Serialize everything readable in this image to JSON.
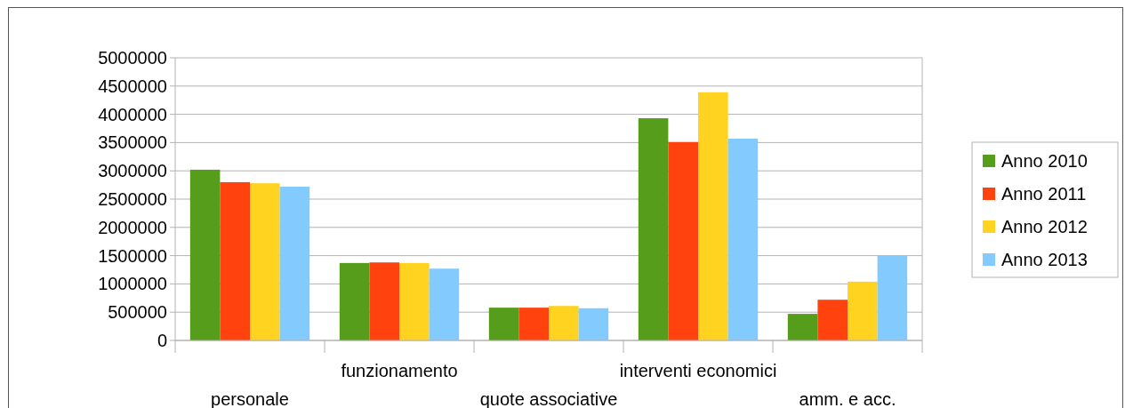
{
  "chart_data": {
    "type": "bar",
    "categories": [
      "personale",
      "funzionamento",
      "quote associative",
      "interventi economici",
      "amm. e acc."
    ],
    "series": [
      {
        "name": "Anno 2010",
        "color": "#579d1c",
        "values": [
          3020000,
          1370000,
          580000,
          3930000,
          470000
        ]
      },
      {
        "name": "Anno 2011",
        "color": "#ff420e",
        "values": [
          2800000,
          1380000,
          580000,
          3510000,
          720000
        ]
      },
      {
        "name": "Anno 2012",
        "color": "#ffd320",
        "values": [
          2780000,
          1370000,
          610000,
          4390000,
          1040000
        ]
      },
      {
        "name": "Anno 2013",
        "color": "#83caff",
        "values": [
          2720000,
          1270000,
          570000,
          3570000,
          1510000
        ]
      }
    ],
    "ylim": [
      0,
      5000000
    ],
    "yticks": [
      0,
      500000,
      1000000,
      1500000,
      2000000,
      2500000,
      3000000,
      3500000,
      4000000,
      4500000,
      5000000
    ],
    "grid": "y",
    "legend": "right"
  }
}
